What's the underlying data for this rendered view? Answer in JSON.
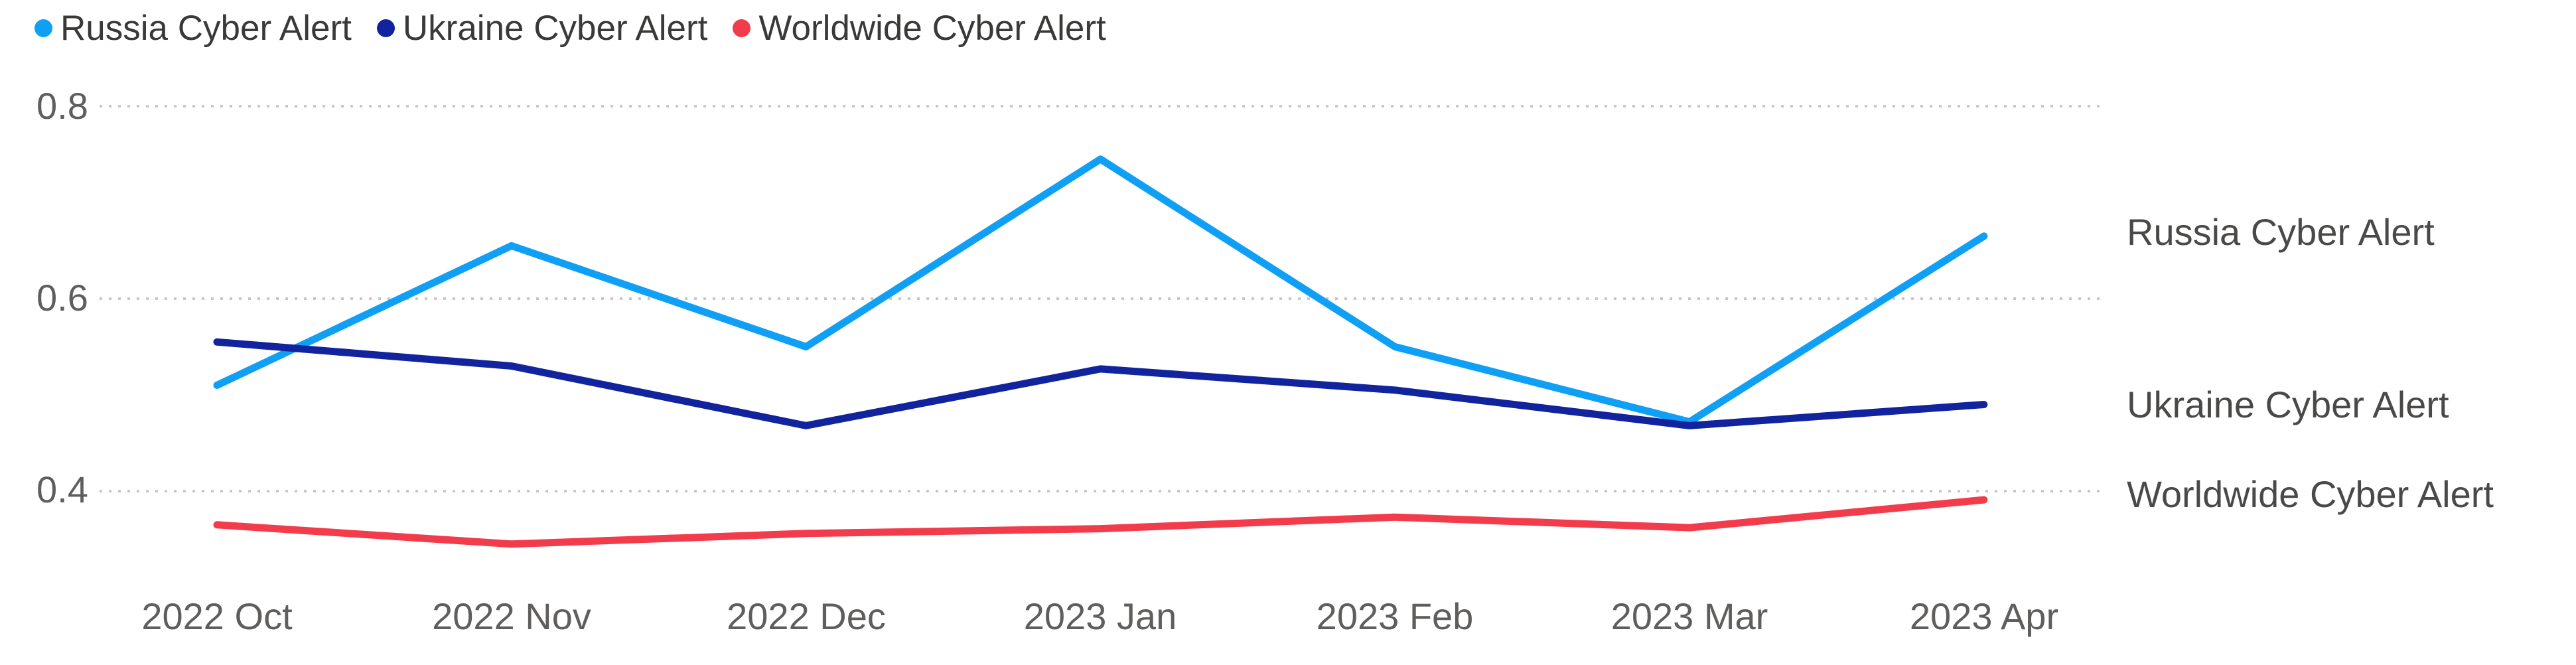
{
  "legend": {
    "items": [
      {
        "label": "Russia Cyber Alert",
        "color": "#0fa0f5"
      },
      {
        "label": "Ukraine Cyber Alert",
        "color": "#12239e"
      },
      {
        "label": "Worldwide Cyber Alert",
        "color": "#f23b4b"
      }
    ]
  },
  "y_axis": {
    "ticks": [
      "0.8",
      "0.6",
      "0.4"
    ]
  },
  "x_axis": {
    "ticks": [
      "2022 Oct",
      "2022 Nov",
      "2022 Dec",
      "2023 Jan",
      "2023 Feb",
      "2023 Mar",
      "2023 Apr"
    ]
  },
  "series_end_labels": [
    "Russia Cyber Alert",
    "Ukraine Cyber Alert",
    "Worldwide Cyber Alert"
  ],
  "colors": {
    "russia": "#0fa0f5",
    "ukraine": "#12239e",
    "worldwide": "#f23b4b",
    "gridline": "#c9c7c5",
    "tick_text": "#605e5c",
    "legend_text": "#3a3938"
  },
  "chart_data": {
    "type": "line",
    "x": [
      "2022 Oct",
      "2022 Nov",
      "2022 Dec",
      "2023 Jan",
      "2023 Feb",
      "2023 Mar",
      "2023 Apr"
    ],
    "series": [
      {
        "name": "Russia Cyber Alert",
        "color": "#0fa0f5",
        "values": [
          0.51,
          0.655,
          0.55,
          0.745,
          0.55,
          0.472,
          0.665
        ]
      },
      {
        "name": "Ukraine Cyber Alert",
        "color": "#12239e",
        "values": [
          0.555,
          0.53,
          0.468,
          0.527,
          0.505,
          0.468,
          0.49
        ]
      },
      {
        "name": "Worldwide Cyber Alert",
        "color": "#f23b4b",
        "values": [
          0.365,
          0.345,
          0.356,
          0.361,
          0.373,
          0.362,
          0.391
        ]
      }
    ],
    "title": "",
    "xlabel": "",
    "ylabel": "",
    "ylim": [
      0.3,
      0.85
    ],
    "yticks": [
      0.4,
      0.6,
      0.8
    ],
    "grid": "horizontal dotted",
    "legend_position": "top-left",
    "series_labels_position": "right of line ends"
  }
}
